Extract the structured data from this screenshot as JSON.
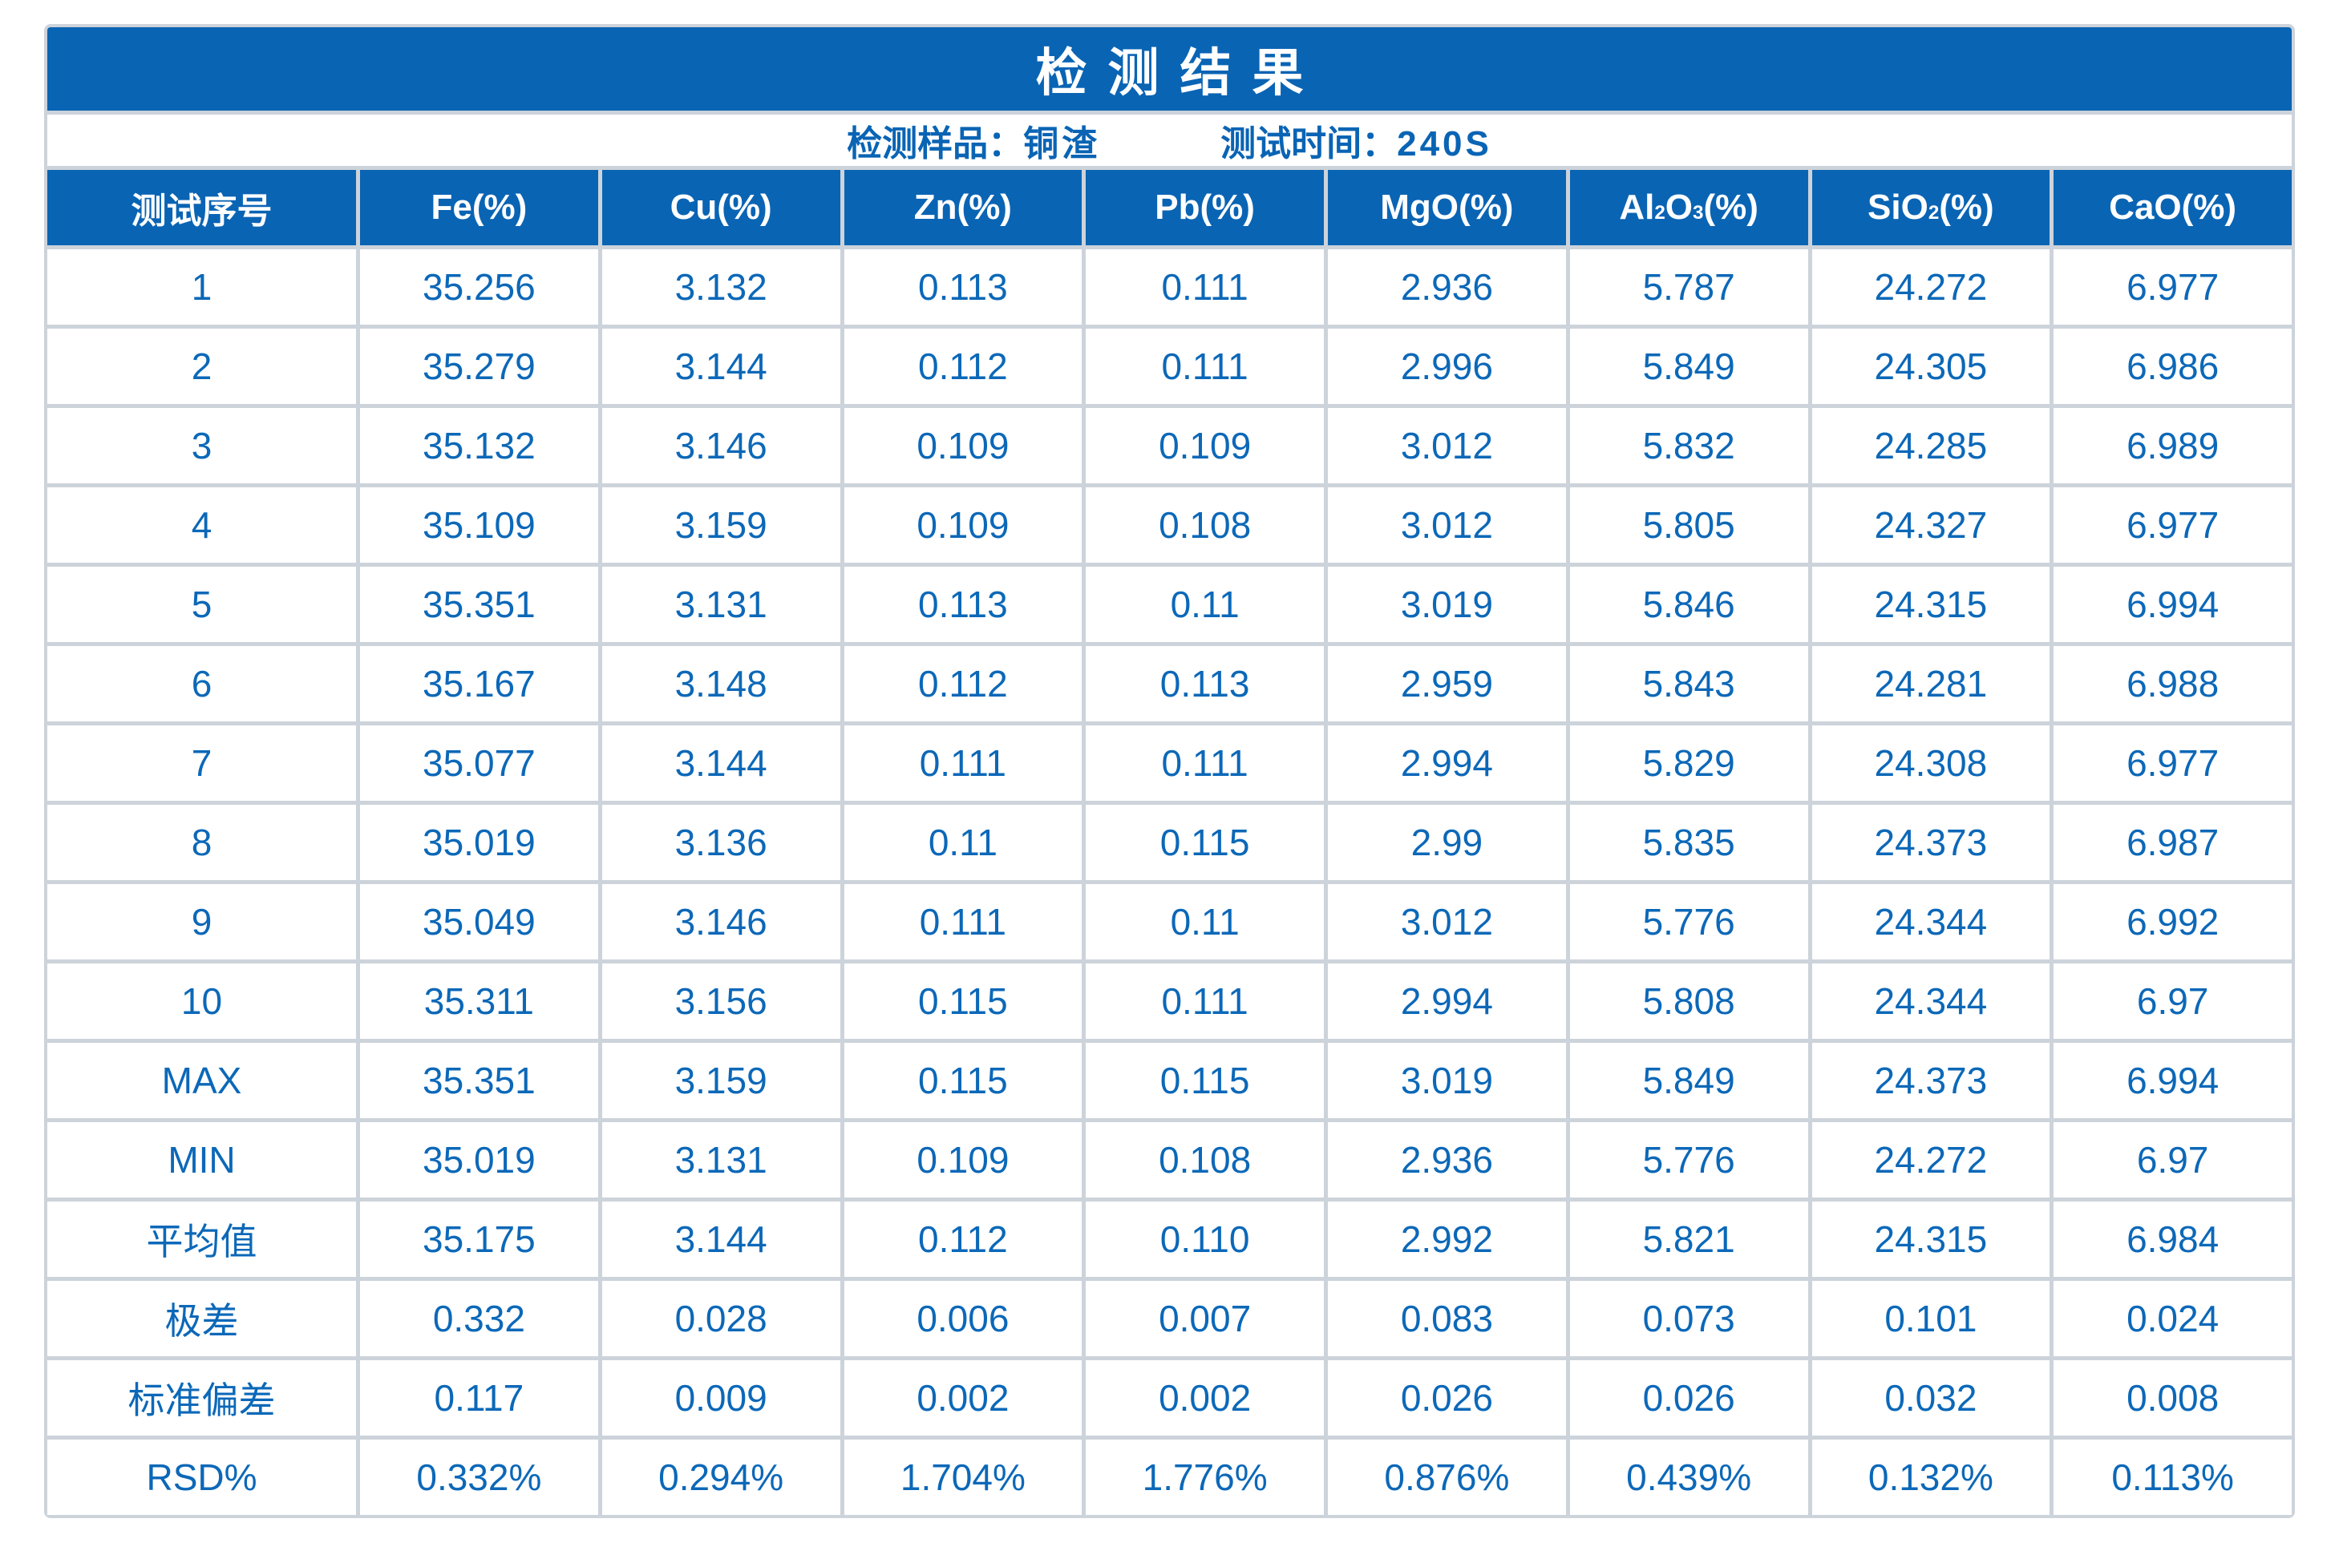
{
  "colors": {
    "accent": "#0a64b4",
    "cell_text": "#0c68b8",
    "grid_line": "#cdd3da",
    "background": "#ffffff",
    "header_text": "#ffffff"
  },
  "title": "检测结果",
  "subtitle": {
    "sample_label": "检测样品：",
    "sample_value": "铜渣",
    "time_label": "测试时间：",
    "time_value": "240S"
  },
  "table": {
    "row_header": "测试序号",
    "columns": [
      {
        "name": "Fe",
        "parts": [
          {
            "t": "Fe(%)"
          }
        ]
      },
      {
        "name": "Cu",
        "parts": [
          {
            "t": "Cu(%)"
          }
        ]
      },
      {
        "name": "Zn",
        "parts": [
          {
            "t": "Zn(%)"
          }
        ]
      },
      {
        "name": "Pb",
        "parts": [
          {
            "t": "Pb(%)"
          }
        ]
      },
      {
        "name": "MgO",
        "parts": [
          {
            "t": "MgO(%)"
          }
        ]
      },
      {
        "name": "Al2O3",
        "parts": [
          {
            "t": "Al"
          },
          {
            "t": "2",
            "sub": true
          },
          {
            "t": "O"
          },
          {
            "t": "3",
            "sub": true
          },
          {
            "t": "(%)"
          }
        ]
      },
      {
        "name": "SiO2",
        "parts": [
          {
            "t": "SiO"
          },
          {
            "t": "2",
            "sub": true
          },
          {
            "t": "(%)"
          }
        ]
      },
      {
        "name": "CaO",
        "parts": [
          {
            "t": "CaO(%)"
          }
        ]
      }
    ],
    "rows": [
      {
        "label": "1",
        "values": [
          "35.256",
          "3.132",
          "0.113",
          "0.111",
          "2.936",
          "5.787",
          "24.272",
          "6.977"
        ]
      },
      {
        "label": "2",
        "values": [
          "35.279",
          "3.144",
          "0.112",
          "0.111",
          "2.996",
          "5.849",
          "24.305",
          "6.986"
        ]
      },
      {
        "label": "3",
        "values": [
          "35.132",
          "3.146",
          "0.109",
          "0.109",
          "3.012",
          "5.832",
          "24.285",
          "6.989"
        ]
      },
      {
        "label": "4",
        "values": [
          "35.109",
          "3.159",
          "0.109",
          "0.108",
          "3.012",
          "5.805",
          "24.327",
          "6.977"
        ]
      },
      {
        "label": "5",
        "values": [
          "35.351",
          "3.131",
          "0.113",
          "0.11",
          "3.019",
          "5.846",
          "24.315",
          "6.994"
        ]
      },
      {
        "label": "6",
        "values": [
          "35.167",
          "3.148",
          "0.112",
          "0.113",
          "2.959",
          "5.843",
          "24.281",
          "6.988"
        ]
      },
      {
        "label": "7",
        "values": [
          "35.077",
          "3.144",
          "0.111",
          "0.111",
          "2.994",
          "5.829",
          "24.308",
          "6.977"
        ]
      },
      {
        "label": "8",
        "values": [
          "35.019",
          "3.136",
          "0.11",
          "0.115",
          "2.99",
          "5.835",
          "24.373",
          "6.987"
        ]
      },
      {
        "label": "9",
        "values": [
          "35.049",
          "3.146",
          "0.111",
          "0.11",
          "3.012",
          "5.776",
          "24.344",
          "6.992"
        ]
      },
      {
        "label": "10",
        "values": [
          "35.311",
          "3.156",
          "0.115",
          "0.111",
          "2.994",
          "5.808",
          "24.344",
          "6.97"
        ]
      },
      {
        "label": "MAX",
        "values": [
          "35.351",
          "3.159",
          "0.115",
          "0.115",
          "3.019",
          "5.849",
          "24.373",
          "6.994"
        ]
      },
      {
        "label": "MIN",
        "values": [
          "35.019",
          "3.131",
          "0.109",
          "0.108",
          "2.936",
          "5.776",
          "24.272",
          "6.97"
        ]
      },
      {
        "label": "平均值",
        "values": [
          "35.175",
          "3.144",
          "0.112",
          "0.110",
          "2.992",
          "5.821",
          "24.315",
          "6.984"
        ]
      },
      {
        "label": "极差",
        "values": [
          "0.332",
          "0.028",
          "0.006",
          "0.007",
          "0.083",
          "0.073",
          "0.101",
          "0.024"
        ]
      },
      {
        "label": "标准偏差",
        "values": [
          "0.117",
          "0.009",
          "0.002",
          "0.002",
          "0.026",
          "0.026",
          "0.032",
          "0.008"
        ]
      },
      {
        "label": "RSD%",
        "values": [
          "0.332%",
          "0.294%",
          "1.704%",
          "1.776%",
          "0.876%",
          "0.439%",
          "0.132%",
          "0.113%"
        ]
      }
    ]
  }
}
